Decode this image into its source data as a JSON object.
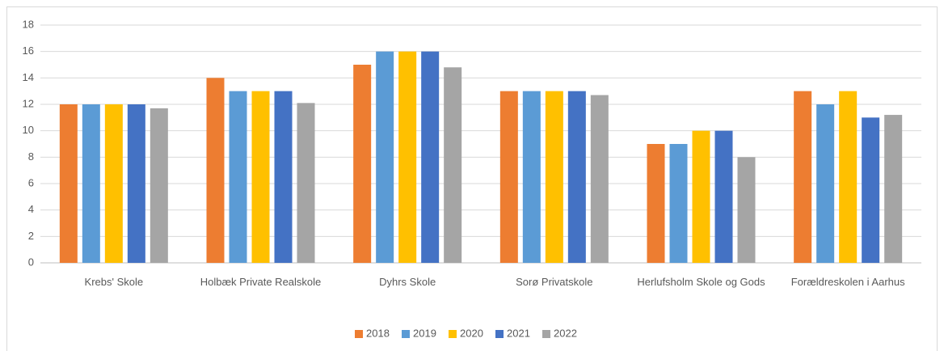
{
  "chart_data": {
    "type": "bar",
    "categories": [
      "Krebs' Skole",
      "Holbæk Private Realskole",
      "Dyhrs Skole",
      "Sorø Privatskole",
      "Herlufsholm Skole og Gods",
      "Forældreskolen i Aarhus"
    ],
    "series": [
      {
        "name": "2018",
        "color": "#ed7d31",
        "values": [
          12,
          14,
          15,
          13,
          9,
          13
        ]
      },
      {
        "name": "2019",
        "color": "#5b9bd5",
        "values": [
          12,
          13,
          16,
          13,
          9,
          12
        ]
      },
      {
        "name": "2020",
        "color": "#ffc000",
        "values": [
          12,
          13,
          16,
          13,
          10,
          13
        ]
      },
      {
        "name": "2021",
        "color": "#4472c4",
        "values": [
          12,
          13,
          16,
          13,
          10,
          11
        ]
      },
      {
        "name": "2022",
        "color": "#a5a5a5",
        "values": [
          11.7,
          12.1,
          14.8,
          12.7,
          8,
          11.2
        ]
      }
    ],
    "ylim": [
      0,
      18
    ],
    "yticks": [
      0,
      2,
      4,
      6,
      8,
      10,
      12,
      14,
      16,
      18
    ],
    "grid": true,
    "legend": "bottom"
  }
}
